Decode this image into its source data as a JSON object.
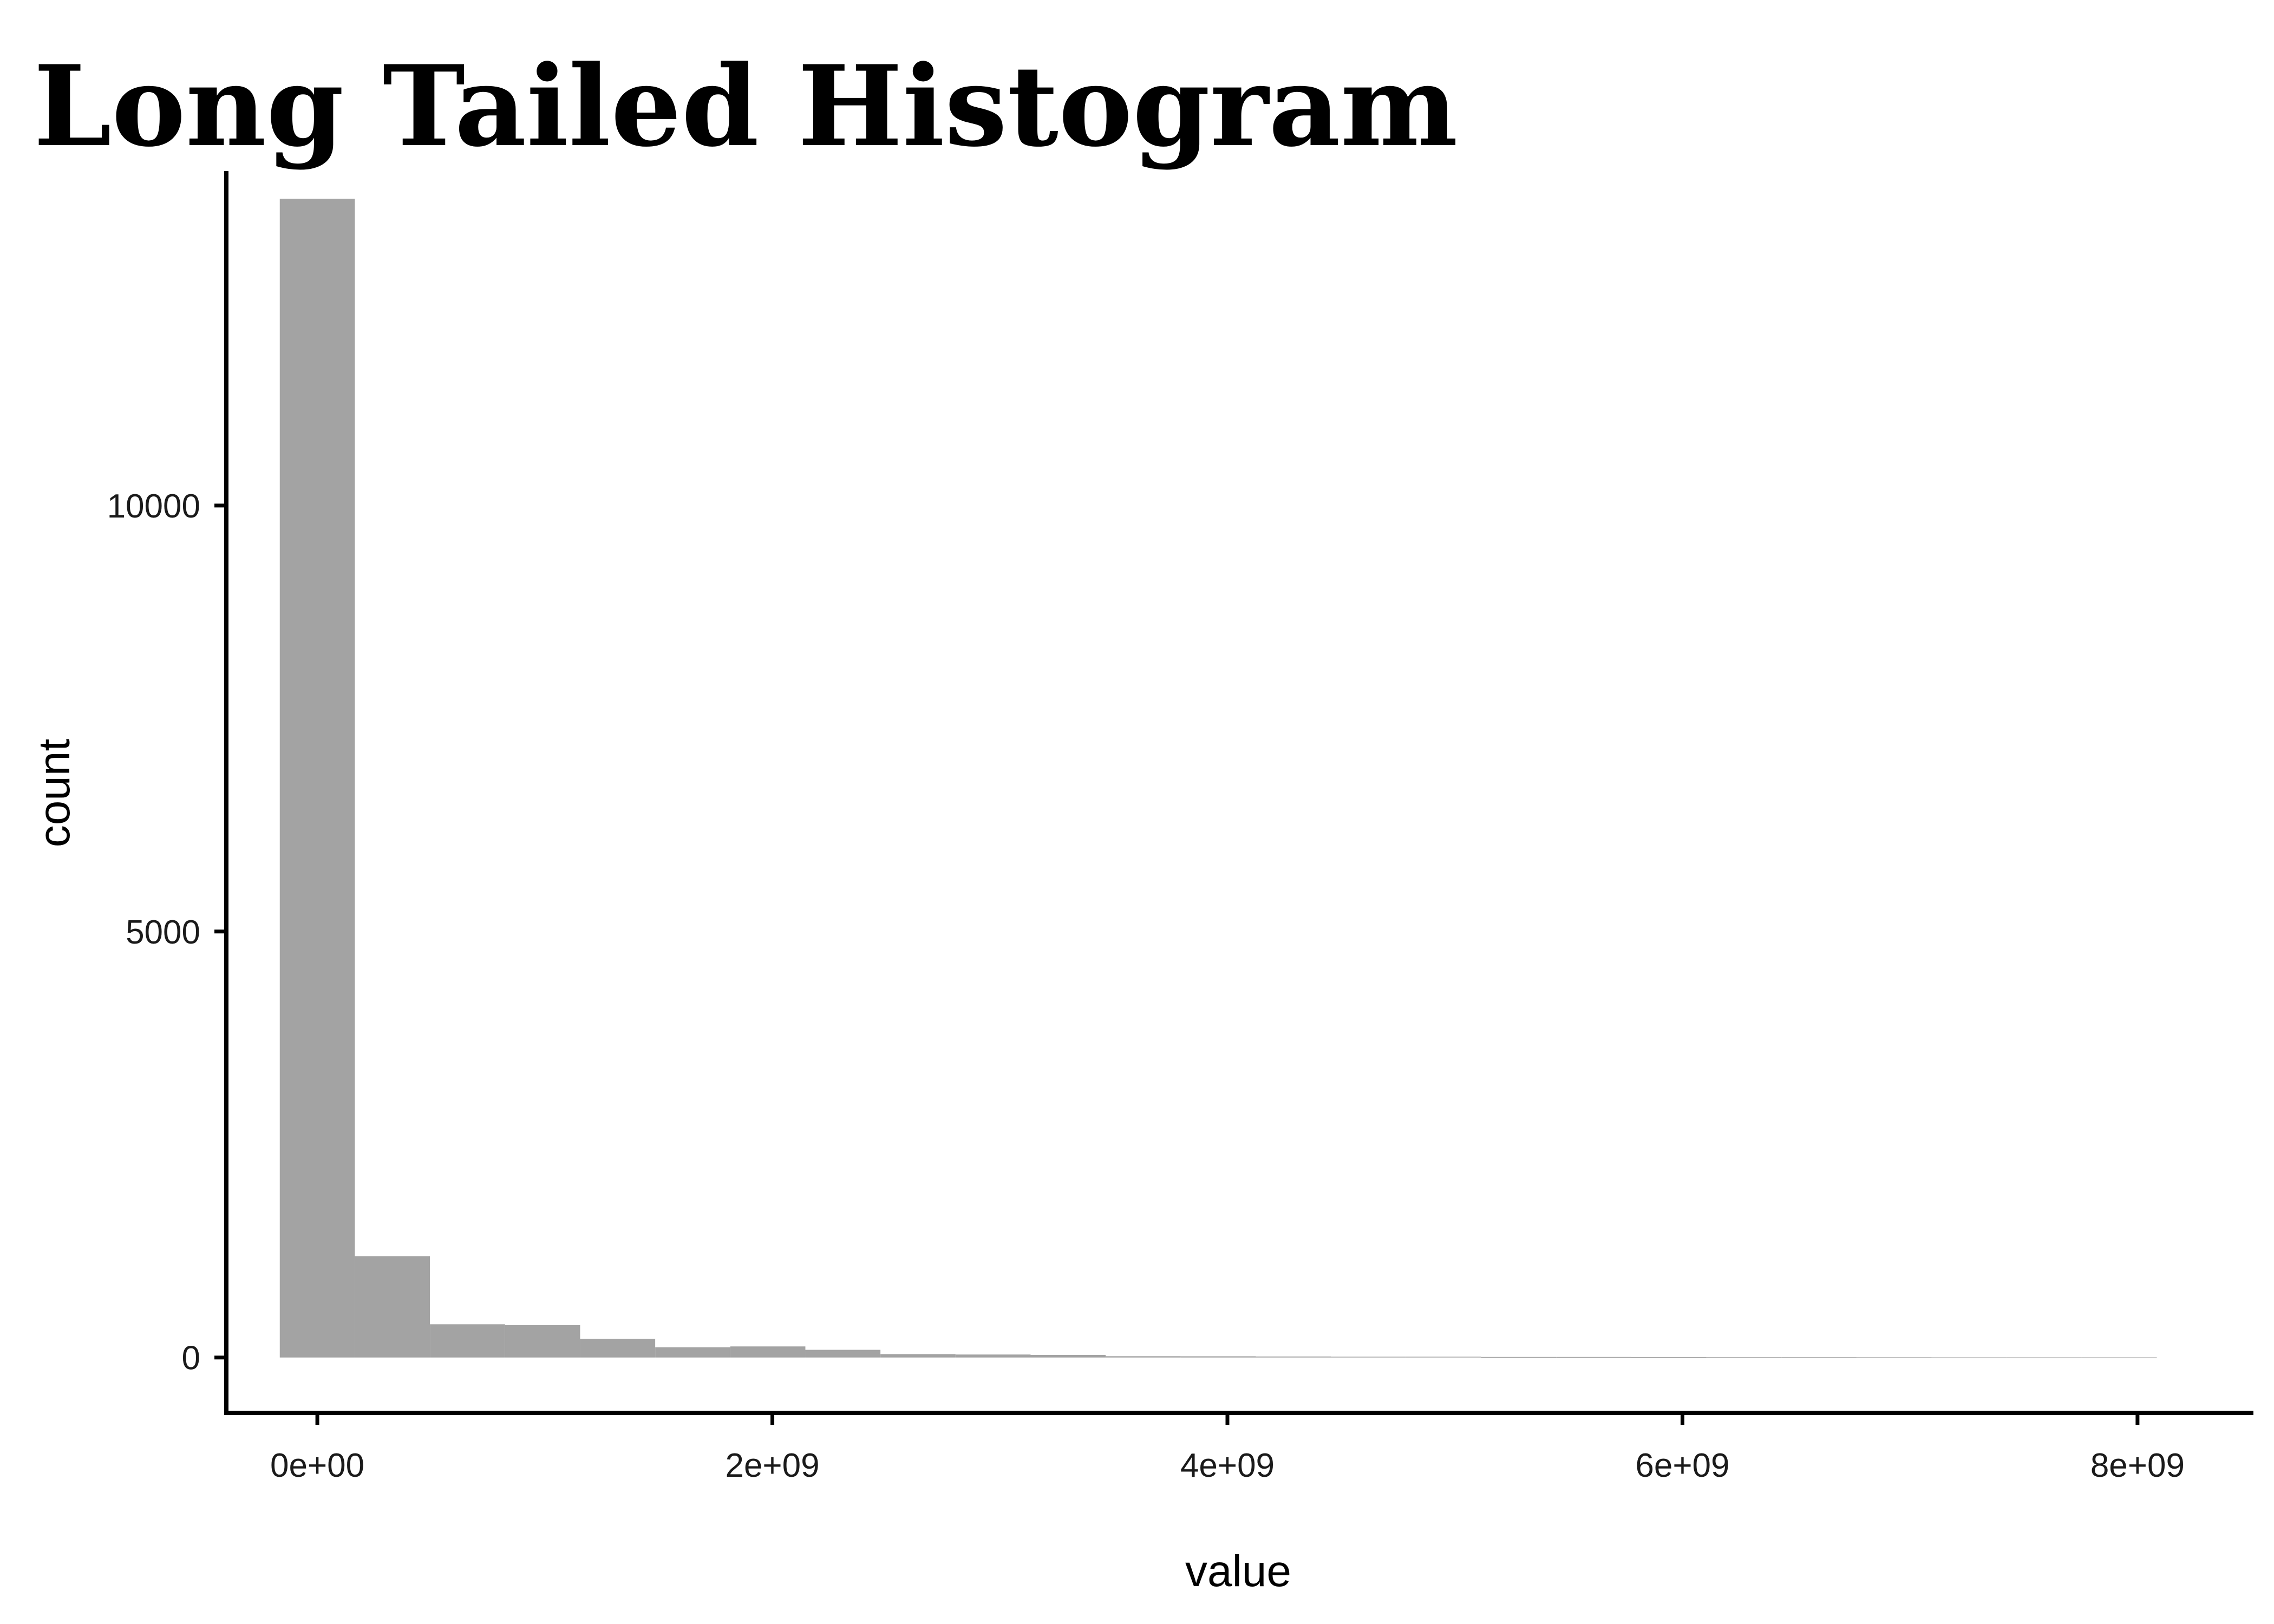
{
  "chart_data": {
    "type": "bar",
    "title": "Long Tailed Histogram",
    "xlabel": "value",
    "ylabel": "count",
    "bar_color": "#a3a3a3",
    "axis_color": "#000000",
    "background": "#ffffff",
    "grid": false,
    "bin_width": 330000000,
    "x_range": [
      -400000000,
      8500000000
    ],
    "y_range": [
      -650,
      13900
    ],
    "x_ticks": [
      {
        "value": 0,
        "label": "0e+00"
      },
      {
        "value": 2000000000,
        "label": "2e+09"
      },
      {
        "value": 4000000000,
        "label": "4e+09"
      },
      {
        "value": 6000000000,
        "label": "6e+09"
      },
      {
        "value": 8000000000,
        "label": "8e+09"
      }
    ],
    "y_ticks": [
      {
        "value": 0,
        "label": "0"
      },
      {
        "value": 5000,
        "label": "5000"
      },
      {
        "value": 10000,
        "label": "10000"
      }
    ],
    "bins": [
      {
        "x_start": -165000000,
        "x_end": 165000000,
        "count": 13600
      },
      {
        "x_start": 165000000,
        "x_end": 495000000,
        "count": 1190
      },
      {
        "x_start": 495000000,
        "x_end": 825000000,
        "count": 390
      },
      {
        "x_start": 825000000,
        "x_end": 1155000000,
        "count": 380
      },
      {
        "x_start": 1155000000,
        "x_end": 1485000000,
        "count": 220
      },
      {
        "x_start": 1485000000,
        "x_end": 1815000000,
        "count": 120
      },
      {
        "x_start": 1815000000,
        "x_end": 2145000000,
        "count": 130
      },
      {
        "x_start": 2145000000,
        "x_end": 2475000000,
        "count": 90
      },
      {
        "x_start": 2475000000,
        "x_end": 2805000000,
        "count": 40
      },
      {
        "x_start": 2805000000,
        "x_end": 3135000000,
        "count": 35
      },
      {
        "x_start": 3135000000,
        "x_end": 3465000000,
        "count": 30
      },
      {
        "x_start": 3465000000,
        "x_end": 3795000000,
        "count": 15
      },
      {
        "x_start": 3795000000,
        "x_end": 4125000000,
        "count": 14
      },
      {
        "x_start": 4125000000,
        "x_end": 4455000000,
        "count": 12
      },
      {
        "x_start": 4455000000,
        "x_end": 4785000000,
        "count": 10
      },
      {
        "x_start": 4785000000,
        "x_end": 5115000000,
        "count": 10
      },
      {
        "x_start": 5115000000,
        "x_end": 5445000000,
        "count": 6
      },
      {
        "x_start": 5445000000,
        "x_end": 5775000000,
        "count": 6
      },
      {
        "x_start": 5775000000,
        "x_end": 6105000000,
        "count": 5
      },
      {
        "x_start": 6105000000,
        "x_end": 6435000000,
        "count": 3
      },
      {
        "x_start": 6435000000,
        "x_end": 6765000000,
        "count": 3
      },
      {
        "x_start": 6765000000,
        "x_end": 7095000000,
        "count": 2
      },
      {
        "x_start": 7095000000,
        "x_end": 7425000000,
        "count": 1
      },
      {
        "x_start": 7425000000,
        "x_end": 7755000000,
        "count": 1
      },
      {
        "x_start": 7755000000,
        "x_end": 8085000000,
        "count": 1
      }
    ]
  }
}
